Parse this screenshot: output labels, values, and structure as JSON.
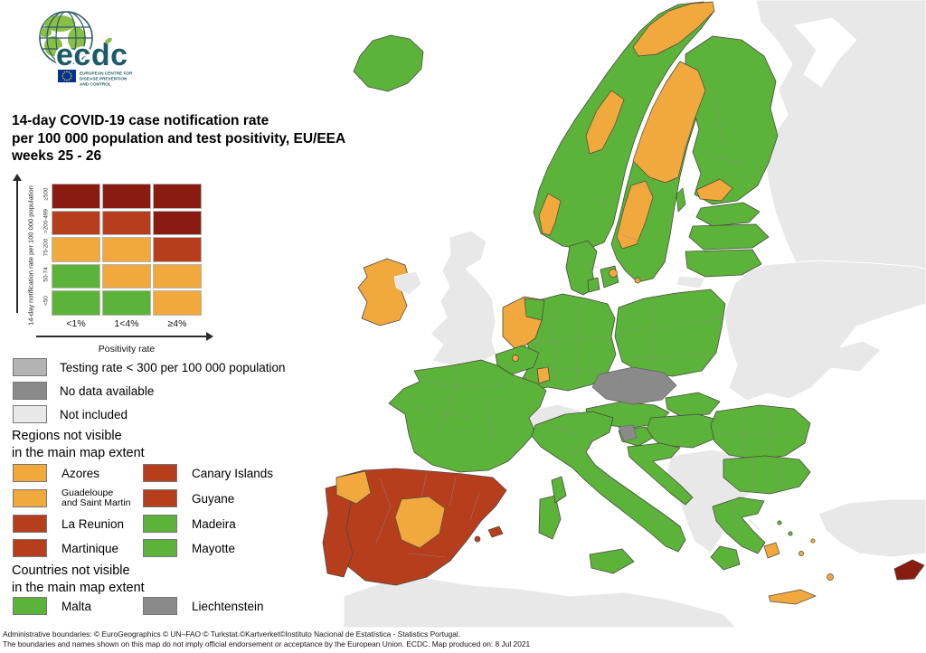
{
  "logo": {
    "brand": "ecdc",
    "line1": "EUROPEAN CENTRE FOR",
    "line2": "DISEASE PREVENTION",
    "line3": "AND CONTROL"
  },
  "title": {
    "line1": "14-day COVID-19 case notification rate",
    "line2": "per 100 000 population and test positivity, EU/EEA",
    "line3": "weeks 25 - 26"
  },
  "colors": {
    "green": "#5CB339",
    "orange": "#F1A83D",
    "red": "#B73E1D",
    "darkred": "#8A1B11",
    "testing_gray": "#B3B3B3",
    "nodata_gray": "#8A8A8A",
    "notincluded_gray": "#E8E8E8",
    "sea": "#FFFFFF"
  },
  "matrix_legend": {
    "y_axis_label": "14-day notification rate per 100 000 population",
    "x_axis_label": "Positivity rate",
    "row_labels": [
      "≥500",
      ">200-499",
      "75-200",
      "50-74",
      "<50"
    ],
    "col_labels": [
      "<1%",
      "1<4%",
      "≥4%"
    ],
    "cell_colors": [
      [
        "darkred",
        "darkred",
        "darkred"
      ],
      [
        "red",
        "red",
        "darkred"
      ],
      [
        "orange",
        "orange",
        "red"
      ],
      [
        "green",
        "orange",
        "orange"
      ],
      [
        "green",
        "green",
        "orange"
      ]
    ]
  },
  "status_legend": [
    {
      "label": "Testing rate < 300 per 100 000 population",
      "color_key": "testing_gray"
    },
    {
      "label": "No data available",
      "color_key": "nodata_gray"
    },
    {
      "label": "Not included",
      "color_key": "notincluded_gray"
    }
  ],
  "regions_section": {
    "heading": "Regions not visible\nin the main map extent",
    "items": [
      {
        "label": "Azores",
        "color_key": "orange"
      },
      {
        "label": "Canary Islands",
        "color_key": "red"
      },
      {
        "label": "Guadeloupe\nand Saint Martin",
        "color_key": "orange"
      },
      {
        "label": "Guyane",
        "color_key": "red"
      },
      {
        "label": "La Reunion",
        "color_key": "red"
      },
      {
        "label": "Madeira",
        "color_key": "green"
      },
      {
        "label": "Martinique",
        "color_key": "red"
      },
      {
        "label": "Mayotte",
        "color_key": "green"
      }
    ]
  },
  "countries_section": {
    "heading": "Countries not visible\nin the main map extent",
    "items": [
      {
        "label": "Malta",
        "color_key": "green"
      },
      {
        "label": "Liechtenstein",
        "color_key": "nodata_gray"
      }
    ]
  },
  "footer": {
    "line1": "Administrative boundaries: © EuroGeographics © UN–FAO © Turkstat.©Kartverket©Instituto Nacional de Estatística - Statistics Portugal.",
    "line2": "The boundaries and names shown on this map do not imply official endorsement or acceptance by the European Union. ECDC. Map produced on: 8 Jul 2021"
  },
  "map": {
    "region_colors": {
      "russia": "notincluded_gray",
      "white_sea": "sea",
      "ukraine": "notincluded_gray",
      "balkans": "notincluded_gray",
      "turkey": "notincluded_gray",
      "north_africa": "notincluded_gray",
      "britain": "notincluded_gray",
      "northern_ireland": "notincluded_gray",
      "switzerland": "notincluded_gray",
      "kaliningrad": "notincluded_gray",
      "iceland": "green",
      "norway": "green",
      "norway_north": "orange",
      "norway_mid": "orange",
      "norway_south": "orange",
      "sweden": "green",
      "sweden_north": "orange",
      "sweden_mid": "orange",
      "gotland": "green",
      "finland": "green",
      "finland_south": "orange",
      "estonia": "green",
      "latvia": "green",
      "lithuania": "green",
      "denmark_jutland": "green",
      "denmark_funen": "green",
      "denmark_zealand": "green",
      "copenhagen": "orange",
      "bornholm": "orange",
      "ireland": "orange",
      "netherlands": "orange",
      "netherlands_northeast": "green",
      "belgium": "green",
      "brussels": "orange",
      "luxembourg": "orange",
      "germany": "green",
      "poland": "green",
      "france": "green",
      "corsica": "green",
      "czechia": "nodata_gray",
      "austria": "green",
      "slovakia": "green",
      "hungary": "green",
      "slovenia": "green",
      "slovenia_west": "nodata_gray",
      "croatia": "green",
      "italy": "green",
      "sicily": "green",
      "sardinia": "green",
      "spain": "red",
      "galicia": "orange",
      "castilla_la_mancha": "orange",
      "balearic_1": "red",
      "balearic_2": "red",
      "portugal": "red",
      "romania": "green",
      "bulgaria": "green",
      "greece": "green",
      "peloponnese": "green",
      "attica": "orange",
      "aegean_1": "green",
      "aegean_2": "green",
      "aegean_3": "orange",
      "aegean_4": "orange",
      "crete": "orange",
      "rhodes": "orange",
      "cyprus": "darkred"
    }
  }
}
